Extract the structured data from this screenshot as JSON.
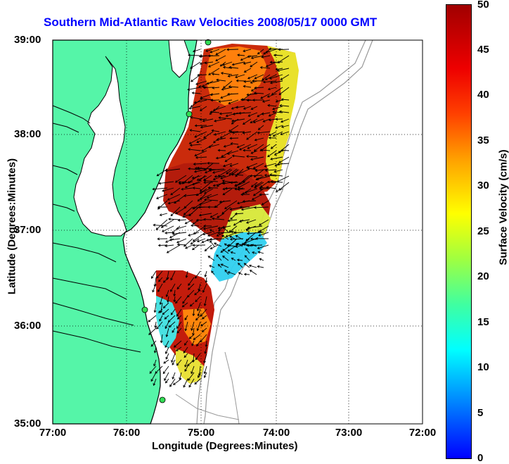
{
  "title": "Southern Mid-Atlantic Raw Velocities 2008/05/17 0000 GMT",
  "xlabel": "Longitude (Degrees:Minutes)",
  "ylabel": "Latitude (Degrees:Minutes)",
  "colorbar_label": "Surface Velocity (cm/s)",
  "x_ticks": [
    "77:00",
    "76:00",
    "75:00",
    "74:00",
    "73:00",
    "72:00"
  ],
  "y_ticks": [
    "39:00",
    "38:00",
    "37:00",
    "36:00",
    "35:00"
  ],
  "colorbar_ticks": [
    "50",
    "45",
    "40",
    "35",
    "30",
    "25",
    "20",
    "15",
    "10",
    "5",
    "0"
  ],
  "colors": {
    "land": "#55f5a8",
    "coast": "#000000",
    "bathymetry": "#999999",
    "title": "#0000ff"
  },
  "map_extent": {
    "lon": [
      -77,
      -72
    ],
    "lat": [
      35,
      39
    ]
  },
  "colorbar_range": [
    0,
    50
  ]
}
